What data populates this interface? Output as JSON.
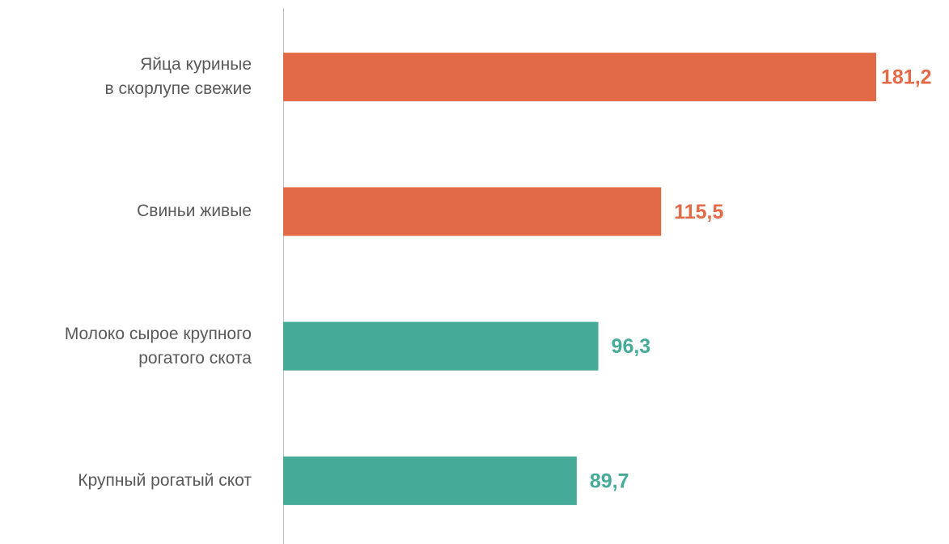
{
  "chart_data": {
    "type": "bar",
    "orientation": "horizontal",
    "categories": [
      "Яйца куриные\nв скорлупе свежие",
      "Свиньи живые",
      "Молоко сырое крупного\nрогатого скота",
      "Крупный рогатый скот"
    ],
    "values": [
      181.2,
      115.5,
      96.3,
      89.7
    ],
    "value_labels": [
      "181,2",
      "115,5",
      "96,3",
      "89,7"
    ],
    "colors": [
      "#e36a47",
      "#e36a47",
      "#45aa98",
      "#45aa98"
    ]
  }
}
